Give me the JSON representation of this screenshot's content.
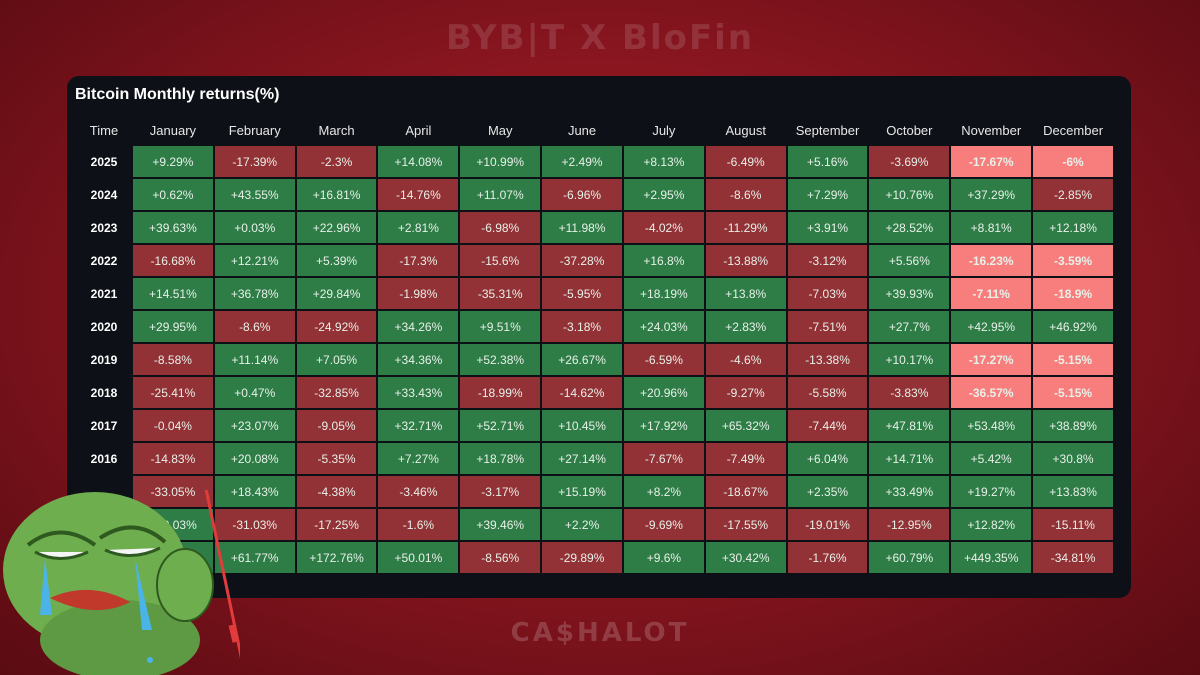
{
  "brand": {
    "top": "BYB|T X BloFin",
    "bottom": "CA$HALOT"
  },
  "chart_data": {
    "type": "table",
    "title": "Bitcoin Monthly returns(%)",
    "columns": [
      "Time",
      "January",
      "February",
      "March",
      "April",
      "May",
      "June",
      "July",
      "August",
      "September",
      "October",
      "November",
      "December"
    ],
    "rows": [
      {
        "year": "2025",
        "values": [
          "+9.29%",
          "-17.39%",
          "-2.3%",
          "+14.08%",
          "+10.99%",
          "+2.49%",
          "+8.13%",
          "-6.49%",
          "+5.16%",
          "-3.69%",
          "-17.67%",
          "-6%"
        ]
      },
      {
        "year": "2024",
        "values": [
          "+0.62%",
          "+43.55%",
          "+16.81%",
          "-14.76%",
          "+11.07%",
          "-6.96%",
          "+2.95%",
          "-8.6%",
          "+7.29%",
          "+10.76%",
          "+37.29%",
          "-2.85%"
        ]
      },
      {
        "year": "2023",
        "values": [
          "+39.63%",
          "+0.03%",
          "+22.96%",
          "+2.81%",
          "-6.98%",
          "+11.98%",
          "-4.02%",
          "-11.29%",
          "+3.91%",
          "+28.52%",
          "+8.81%",
          "+12.18%"
        ]
      },
      {
        "year": "2022",
        "values": [
          "-16.68%",
          "+12.21%",
          "+5.39%",
          "-17.3%",
          "-15.6%",
          "-37.28%",
          "+16.8%",
          "-13.88%",
          "-3.12%",
          "+5.56%",
          "-16.23%",
          "-3.59%"
        ]
      },
      {
        "year": "2021",
        "values": [
          "+14.51%",
          "+36.78%",
          "+29.84%",
          "-1.98%",
          "-35.31%",
          "-5.95%",
          "+18.19%",
          "+13.8%",
          "-7.03%",
          "+39.93%",
          "-7.11%",
          "-18.9%"
        ]
      },
      {
        "year": "2020",
        "values": [
          "+29.95%",
          "-8.6%",
          "-24.92%",
          "+34.26%",
          "+9.51%",
          "-3.18%",
          "+24.03%",
          "+2.83%",
          "-7.51%",
          "+27.7%",
          "+42.95%",
          "+46.92%"
        ]
      },
      {
        "year": "2019",
        "values": [
          "-8.58%",
          "+11.14%",
          "+7.05%",
          "+34.36%",
          "+52.38%",
          "+26.67%",
          "-6.59%",
          "-4.6%",
          "-13.38%",
          "+10.17%",
          "-17.27%",
          "-5.15%"
        ]
      },
      {
        "year": "2018",
        "values": [
          "-25.41%",
          "+0.47%",
          "-32.85%",
          "+33.43%",
          "-18.99%",
          "-14.62%",
          "+20.96%",
          "-9.27%",
          "-5.58%",
          "-3.83%",
          "-36.57%",
          "-5.15%"
        ]
      },
      {
        "year": "2017",
        "values": [
          "-0.04%",
          "+23.07%",
          "-9.05%",
          "+32.71%",
          "+52.71%",
          "+10.45%",
          "+17.92%",
          "+65.32%",
          "-7.44%",
          "+47.81%",
          "+53.48%",
          "+38.89%"
        ]
      },
      {
        "year": "2016",
        "values": [
          "-14.83%",
          "+20.08%",
          "-5.35%",
          "+7.27%",
          "+18.78%",
          "+27.14%",
          "-7.67%",
          "-7.49%",
          "+6.04%",
          "+14.71%",
          "+5.42%",
          "+30.8%"
        ]
      },
      {
        "year": "",
        "values": [
          "-33.05%",
          "+18.43%",
          "-4.38%",
          "-3.46%",
          "-3.17%",
          "+15.19%",
          "+8.2%",
          "-18.67%",
          "+2.35%",
          "+33.49%",
          "+19.27%",
          "+13.83%"
        ]
      },
      {
        "year": "",
        "values": [
          "+10.03%",
          "-31.03%",
          "-17.25%",
          "-1.6%",
          "+39.46%",
          "+2.2%",
          "-9.69%",
          "-17.55%",
          "-19.01%",
          "-12.95%",
          "+12.82%",
          "-15.11%"
        ]
      },
      {
        "year": "",
        "values": [
          "",
          "+61.77%",
          "+172.76%",
          "+50.01%",
          "-8.56%",
          "-29.89%",
          "+9.6%",
          "+30.42%",
          "-1.76%",
          "+60.79%",
          "+449.35%",
          "-34.81%"
        ]
      }
    ],
    "highlighted": [
      [
        0,
        10
      ],
      [
        0,
        11
      ],
      [
        3,
        10
      ],
      [
        3,
        11
      ],
      [
        4,
        10
      ],
      [
        4,
        11
      ],
      [
        6,
        10
      ],
      [
        6,
        11
      ],
      [
        7,
        10
      ],
      [
        7,
        11
      ]
    ],
    "colors": {
      "positive": "#2e7d47",
      "negative": "#923236",
      "highlight": "#f87e7e"
    }
  }
}
